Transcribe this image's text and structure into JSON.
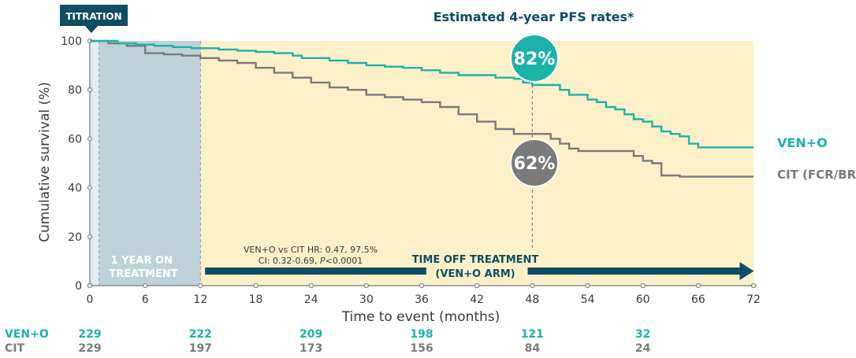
{
  "colors": {
    "venO": "#1bb3a7",
    "cit": "#7b7b7b",
    "navy": "#0e4d64",
    "offBg": "#fcf0c8",
    "onBg": "#bfd2d9"
  },
  "chart_data": {
    "type": "line",
    "title": "Estimated 4-year PFS rates*",
    "xlabel": "Time to event (months)",
    "ylabel": "Cumulative survival (%)",
    "xlim": [
      0,
      72
    ],
    "ylim": [
      0,
      100
    ],
    "xticks": [
      0,
      6,
      12,
      18,
      24,
      30,
      36,
      42,
      48,
      54,
      60,
      66,
      72
    ],
    "yticks": [
      0,
      20,
      40,
      60,
      80,
      100
    ],
    "series": [
      {
        "name": "VEN+O",
        "label": "VEN+O",
        "x": [
          0,
          1,
          3,
          5,
          7,
          9,
          11,
          12,
          14,
          16,
          18,
          20,
          22,
          23,
          24,
          26,
          28,
          30,
          32,
          34,
          36,
          38,
          40,
          42,
          44,
          46,
          47,
          48,
          50,
          51,
          52,
          54,
          55,
          56,
          57,
          58,
          59,
          60,
          61,
          62,
          63,
          64,
          65,
          66,
          68,
          70,
          72
        ],
        "y": [
          100,
          100,
          99,
          98.5,
          98,
          97.5,
          97,
          97,
          96.5,
          96,
          95.5,
          95,
          94,
          93,
          93,
          92,
          91,
          90,
          89.5,
          89,
          88,
          87,
          86,
          86,
          85,
          84.5,
          83,
          82,
          82,
          80,
          78,
          76,
          75,
          73,
          72,
          70,
          68,
          67,
          65,
          63,
          62,
          61,
          58,
          56.5,
          56.5,
          56.5,
          56.5
        ]
      },
      {
        "name": "CIT",
        "label": "CIT (FCR/BR)",
        "x": [
          0,
          2,
          4,
          6,
          8,
          10,
          12,
          14,
          16,
          18,
          20,
          22,
          24,
          26,
          28,
          30,
          32,
          34,
          36,
          38,
          40,
          42,
          44,
          46,
          48,
          50,
          51,
          52,
          53,
          54,
          56,
          58,
          59,
          60,
          61,
          62,
          64,
          66,
          68,
          70,
          72
        ],
        "y": [
          100,
          99,
          98,
          95,
          94.5,
          94,
          93,
          92,
          91,
          89,
          87,
          85,
          83,
          81,
          80,
          78,
          77,
          76,
          75,
          73,
          70,
          67,
          64,
          62,
          62,
          60,
          58,
          56,
          55,
          55,
          55,
          55,
          53,
          51,
          50,
          45,
          44.5,
          44.5,
          44.5,
          44.5,
          44.5
        ]
      }
    ],
    "annotations": {
      "titration": "TITRATION",
      "on_treatment": "1 YEAR ON TREATMENT",
      "off_treatment_line1": "TIME OFF TREATMENT",
      "off_treatment_line2": "(VEN+O ARM)",
      "hr_line1": "VEN+O vs CIT HR: 0.47, 97.5%",
      "hr_line2_prefix": "CI: 0.32-0.69, ",
      "hr_line2_p": "P",
      "hr_line2_suffix": "<0.0001",
      "venO_rate": "82%",
      "cit_rate": "62%"
    },
    "risk_table": {
      "times": [
        0,
        12,
        24,
        36,
        48,
        60
      ],
      "rows": [
        {
          "label": "VEN+O",
          "values": [
            "229",
            "222",
            "209",
            "198",
            "121",
            "32"
          ]
        },
        {
          "label": "CIT",
          "values": [
            "229",
            "197",
            "173",
            "156",
            "84",
            "24"
          ]
        }
      ]
    }
  }
}
